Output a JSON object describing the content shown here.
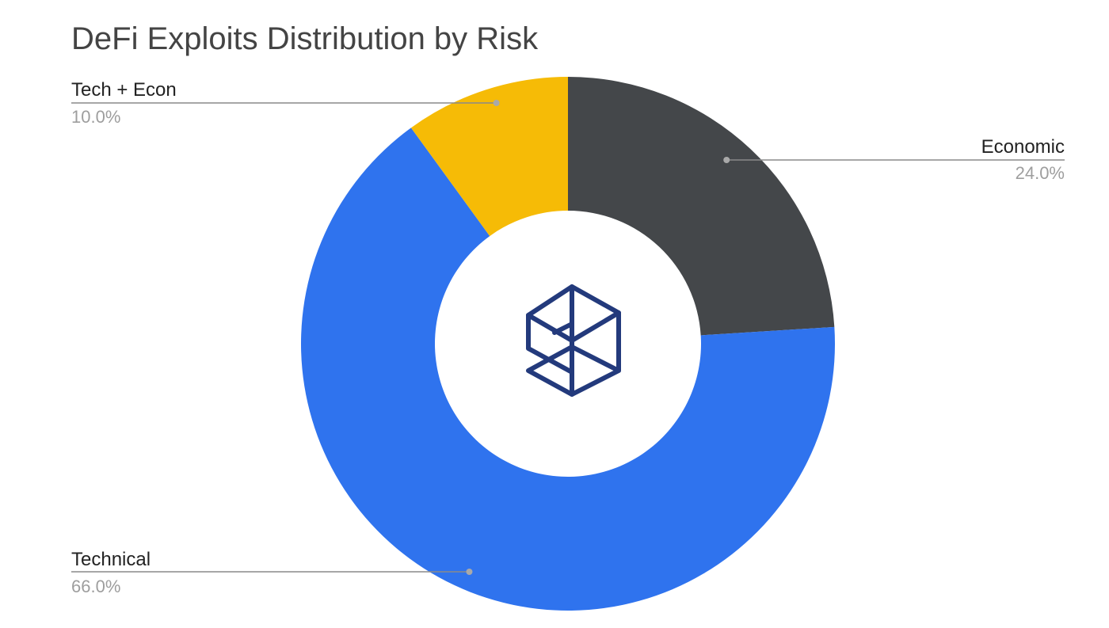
{
  "chart_data": {
    "type": "pie",
    "donut": true,
    "title": "DeFi Exploits Distribution by Risk",
    "slices": [
      {
        "label": "Economic",
        "value": 24.0,
        "value_label": "24.0%",
        "color": "#44474a"
      },
      {
        "label": "Technical",
        "value": 66.0,
        "value_label": "66.0%",
        "color": "#2f73ee"
      },
      {
        "label": "Tech + Econ",
        "value": 10.0,
        "value_label": "10.0%",
        "color": "#f6bb06"
      }
    ],
    "legend": "none"
  },
  "center_logo": {
    "icon": "stacked-cubes-logo-icon",
    "color": "#233a7c"
  }
}
